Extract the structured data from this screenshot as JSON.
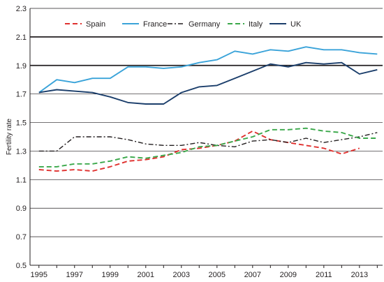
{
  "chart_data": {
    "type": "line",
    "title": "",
    "xlabel": "",
    "ylabel": "Fertility rate",
    "x": [
      1995,
      1996,
      1997,
      1998,
      1999,
      2000,
      2001,
      2002,
      2003,
      2004,
      2005,
      2006,
      2007,
      2008,
      2009,
      2010,
      2011,
      2012,
      2013,
      2014
    ],
    "xticks": [
      "1995",
      "1997",
      "1999",
      "2001",
      "2003",
      "2005",
      "2007",
      "2009",
      "2011",
      "2013"
    ],
    "yticks": [
      "0.5",
      "0.7",
      "0.9",
      "1.1",
      "1.3",
      "1.5",
      "1.7",
      "1.9",
      "2.1",
      "2.3"
    ],
    "ylim": [
      0.5,
      2.3
    ],
    "xlim": [
      1994.5,
      2014.3
    ],
    "grid": "horizontal",
    "legend_position": "top",
    "series": [
      {
        "name": "Spain",
        "color": "#e0312f",
        "style": "dashed",
        "values": [
          1.17,
          1.16,
          1.17,
          1.16,
          1.19,
          1.23,
          1.24,
          1.26,
          1.31,
          1.32,
          1.34,
          1.37,
          1.44,
          1.38,
          1.36,
          1.34,
          1.32,
          1.28,
          1.32,
          null
        ]
      },
      {
        "name": "France",
        "color": "#3aa3d9",
        "style": "solid",
        "values": [
          1.71,
          1.8,
          1.78,
          1.81,
          1.81,
          1.89,
          1.89,
          1.88,
          1.89,
          1.92,
          1.94,
          2.0,
          1.98,
          2.01,
          2.0,
          2.03,
          2.01,
          2.01,
          1.99,
          1.98
        ]
      },
      {
        "name": "Germany",
        "color": "#231f20",
        "style": "dashdot",
        "values": [
          1.3,
          1.3,
          1.4,
          1.4,
          1.4,
          1.38,
          1.35,
          1.34,
          1.34,
          1.36,
          1.34,
          1.33,
          1.37,
          1.38,
          1.36,
          1.39,
          1.36,
          1.38,
          1.4,
          1.43
        ]
      },
      {
        "name": "Italy",
        "color": "#3aa84a",
        "style": "dashed",
        "values": [
          1.19,
          1.19,
          1.21,
          1.21,
          1.23,
          1.26,
          1.25,
          1.27,
          1.29,
          1.33,
          1.34,
          1.37,
          1.4,
          1.45,
          1.45,
          1.46,
          1.44,
          1.43,
          1.39,
          1.39
        ]
      },
      {
        "name": "UK",
        "color": "#1b3e6b",
        "style": "solid",
        "values": [
          1.71,
          1.73,
          1.72,
          1.71,
          1.68,
          1.64,
          1.63,
          1.63,
          1.71,
          1.75,
          1.76,
          1.81,
          1.86,
          1.91,
          1.89,
          1.92,
          1.91,
          1.92,
          1.84,
          1.87
        ]
      }
    ]
  }
}
